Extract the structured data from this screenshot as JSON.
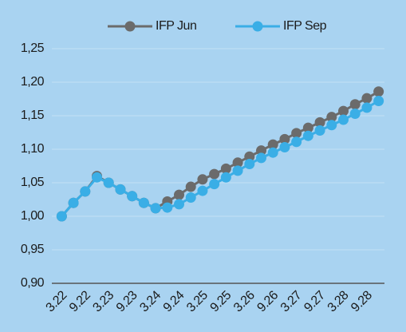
{
  "chart_data": {
    "type": "line",
    "categories": [
      "3.22",
      null,
      "9.22",
      null,
      "3.23",
      null,
      "9.23",
      null,
      "3.24",
      null,
      "9.24",
      null,
      "3.25",
      null,
      "9.25",
      null,
      "3.26",
      null,
      "9.26",
      null,
      "3.27",
      null,
      "9.27",
      null,
      "3.28",
      null,
      "9.28",
      null
    ],
    "series": [
      {
        "name": "IFP Jun",
        "color": "#6b6b6b",
        "values": [
          1.0,
          1.02,
          1.037,
          1.06,
          1.05,
          1.04,
          1.03,
          1.02,
          1.012,
          1.022,
          1.032,
          1.044,
          1.055,
          1.063,
          1.071,
          1.08,
          1.089,
          1.098,
          1.107,
          1.115,
          1.124,
          1.132,
          1.14,
          1.148,
          1.157,
          1.167,
          1.176,
          1.186
        ]
      },
      {
        "name": "IFP Sep",
        "color": "#3aaee6",
        "values": [
          1.0,
          1.02,
          1.037,
          1.058,
          1.05,
          1.04,
          1.03,
          1.02,
          1.012,
          1.013,
          1.018,
          1.028,
          1.038,
          1.048,
          1.058,
          1.068,
          1.078,
          1.087,
          1.095,
          1.103,
          1.111,
          1.12,
          1.128,
          1.136,
          1.144,
          1.153,
          1.162,
          1.172
        ]
      }
    ],
    "ylim": [
      0.9,
      1.25
    ],
    "yticks": [
      {
        "value": 0.9,
        "label": "0,90"
      },
      {
        "value": 0.95,
        "label": "0,95"
      },
      {
        "value": 1.0,
        "label": "1,00"
      },
      {
        "value": 1.05,
        "label": "1,05"
      },
      {
        "value": 1.1,
        "label": "1,10"
      },
      {
        "value": 1.15,
        "label": "1,15"
      },
      {
        "value": 1.2,
        "label": "1,20"
      },
      {
        "value": 1.25,
        "label": "1,25"
      }
    ],
    "grid": true,
    "legend": "top"
  }
}
